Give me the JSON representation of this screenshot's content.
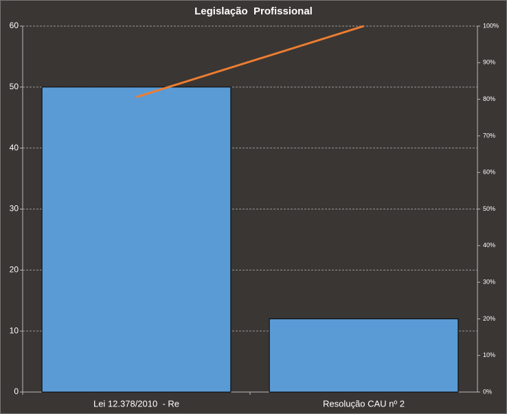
{
  "chart_data": {
    "type": "pareto",
    "title": "Legislação  Profissional",
    "categories": [
      "Lei 12.378/2010  - Re",
      "Resolução CAU nº 2"
    ],
    "series": [
      {
        "type": "bar",
        "color": "#5b9bd5",
        "values": [
          50,
          12
        ]
      },
      {
        "type": "line",
        "color": "#ed7d31",
        "axis": "y2",
        "values": [
          80.6,
          100
        ]
      }
    ],
    "ylim": [
      0,
      60
    ],
    "yticks": [
      0,
      10,
      20,
      30,
      40,
      50,
      60
    ],
    "y2lim": [
      0,
      100
    ],
    "y2ticks": [
      {
        "value": 0,
        "label": "0%"
      },
      {
        "value": 10,
        "label": "10%"
      },
      {
        "value": 20,
        "label": "20%"
      },
      {
        "value": 30,
        "label": "30%"
      },
      {
        "value": 40,
        "label": "40%"
      },
      {
        "value": 50,
        "label": "50%"
      },
      {
        "value": 60,
        "label": "60%"
      },
      {
        "value": 70,
        "label": "70%"
      },
      {
        "value": 80,
        "label": "80%"
      },
      {
        "value": 90,
        "label": "90%"
      },
      {
        "value": 100,
        "label": "100%"
      }
    ],
    "grid": true
  }
}
